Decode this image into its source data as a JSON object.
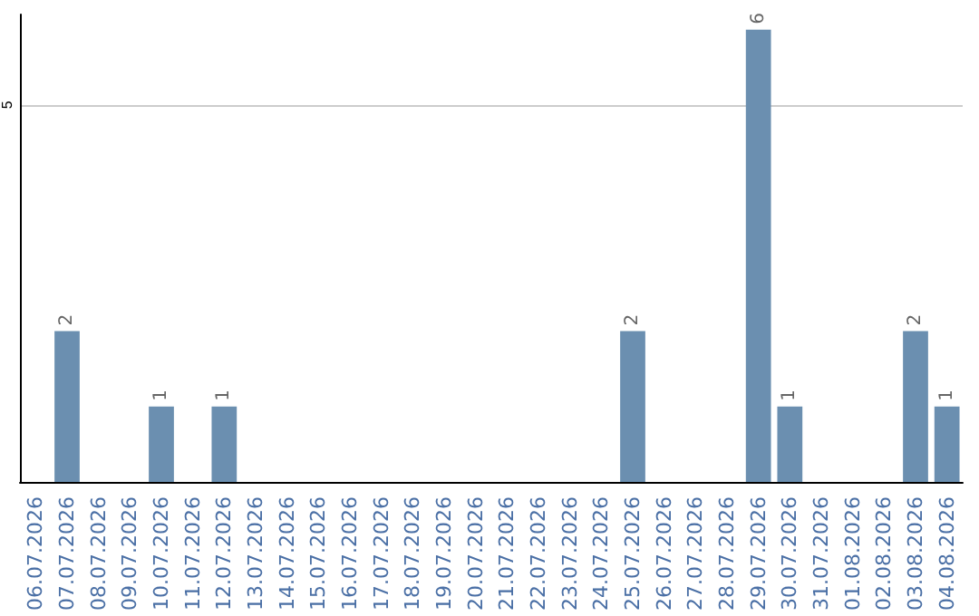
{
  "chart_data": {
    "type": "bar",
    "categories": [
      "06.07.2026",
      "07.07.2026",
      "08.07.2026",
      "09.07.2026",
      "10.07.2026",
      "11.07.2026",
      "12.07.2026",
      "13.07.2026",
      "14.07.2026",
      "15.07.2026",
      "16.07.2026",
      "17.07.2026",
      "18.07.2026",
      "19.07.2026",
      "20.07.2026",
      "21.07.2026",
      "22.07.2026",
      "23.07.2026",
      "24.07.2026",
      "25.07.2026",
      "26.07.2026",
      "27.07.2026",
      "28.07.2026",
      "29.07.2026",
      "30.07.2026",
      "31.07.2026",
      "01.08.2026",
      "02.08.2026",
      "03.08.2026",
      "04.08.2026"
    ],
    "values": [
      0,
      2,
      0,
      0,
      1,
      0,
      1,
      0,
      0,
      0,
      0,
      0,
      0,
      0,
      0,
      0,
      0,
      0,
      0,
      2,
      0,
      0,
      0,
      6,
      1,
      0,
      0,
      0,
      2,
      1
    ],
    "value_labels": [
      null,
      "2",
      null,
      null,
      "1",
      null,
      "1",
      null,
      null,
      null,
      null,
      null,
      null,
      null,
      null,
      null,
      null,
      null,
      null,
      "2",
      null,
      null,
      null,
      "6",
      "1",
      null,
      null,
      null,
      "2",
      "1"
    ],
    "color": "#6b8fb0",
    "ylim": [
      0,
      6.2
    ],
    "yticks": [
      5
    ],
    "grid": "y"
  }
}
